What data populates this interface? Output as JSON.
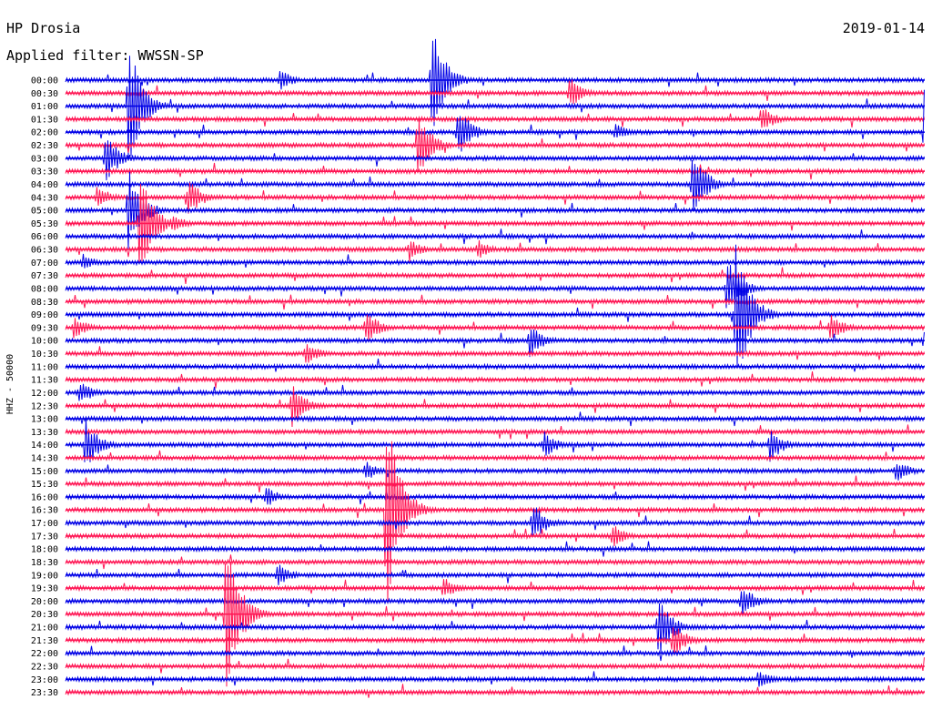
{
  "header": {
    "station": "HP Drosia",
    "date": "2019-01-14",
    "filter": "Applied filter: WWSSN-SP"
  },
  "chart_data": {
    "type": "line",
    "title": "HP Drosia",
    "subtitle": "Applied filter: WWSSN-SP",
    "date": "2019-01-14",
    "ylabel": "HHZ - 50000",
    "xlabel": "",
    "rows": [
      "00:00",
      "00:30",
      "01:00",
      "01:30",
      "02:00",
      "02:30",
      "03:00",
      "03:30",
      "04:00",
      "04:30",
      "05:00",
      "05:30",
      "06:00",
      "06:30",
      "07:00",
      "07:30",
      "08:00",
      "08:30",
      "09:00",
      "09:30",
      "10:00",
      "10:30",
      "11:00",
      "11:30",
      "12:00",
      "12:30",
      "13:00",
      "13:30",
      "14:00",
      "14:30",
      "15:00",
      "15:30",
      "16:00",
      "16:30",
      "17:00",
      "17:30",
      "18:00",
      "18:30",
      "19:00",
      "19:30",
      "20:00",
      "20:30",
      "21:00",
      "21:30",
      "22:00",
      "22:30",
      "23:00",
      "23:30"
    ],
    "row_minutes": 30,
    "series_colors": [
      "#0000e6",
      "#ff1654"
    ],
    "events": [
      {
        "row": 0,
        "minute": 12.8,
        "amp": 60
      },
      {
        "row": 0,
        "minute": 7.5,
        "amp": 12
      },
      {
        "row": 1,
        "minute": 17.6,
        "amp": 18
      },
      {
        "row": 2,
        "minute": 2.2,
        "amp": 75
      },
      {
        "row": 3,
        "minute": 24.3,
        "amp": 16
      },
      {
        "row": 4,
        "minute": 13.7,
        "amp": 30
      },
      {
        "row": 4,
        "minute": 19.2,
        "amp": 10
      },
      {
        "row": 4,
        "minute": 30,
        "amp": 60
      },
      {
        "row": 5,
        "minute": 12.3,
        "amp": 40
      },
      {
        "row": 6,
        "minute": 1.4,
        "amp": 28
      },
      {
        "row": 8,
        "minute": 21.9,
        "amp": 40
      },
      {
        "row": 9,
        "minute": 4.3,
        "amp": 22
      },
      {
        "row": 9,
        "minute": 1.1,
        "amp": 15
      },
      {
        "row": 10,
        "minute": 2.2,
        "amp": 48
      },
      {
        "row": 11,
        "minute": 2.6,
        "amp": 65
      },
      {
        "row": 11,
        "minute": 3.7,
        "amp": 12
      },
      {
        "row": 13,
        "minute": 12.0,
        "amp": 14
      },
      {
        "row": 13,
        "minute": 14.4,
        "amp": 12
      },
      {
        "row": 14,
        "minute": 0.6,
        "amp": 10
      },
      {
        "row": 16,
        "minute": 23.1,
        "amp": 35
      },
      {
        "row": 18,
        "minute": 23.4,
        "amp": 90
      },
      {
        "row": 19,
        "minute": 0.3,
        "amp": 14
      },
      {
        "row": 19,
        "minute": 10.5,
        "amp": 20
      },
      {
        "row": 19,
        "minute": 26.7,
        "amp": 18
      },
      {
        "row": 20,
        "minute": 16.2,
        "amp": 22
      },
      {
        "row": 20,
        "minute": 30,
        "amp": 20
      },
      {
        "row": 21,
        "minute": 8.4,
        "amp": 14
      },
      {
        "row": 24,
        "minute": 0.5,
        "amp": 14
      },
      {
        "row": 25,
        "minute": 7.9,
        "amp": 28
      },
      {
        "row": 28,
        "minute": 0.7,
        "amp": 30
      },
      {
        "row": 28,
        "minute": 16.7,
        "amp": 16
      },
      {
        "row": 28,
        "minute": 24.6,
        "amp": 20
      },
      {
        "row": 30,
        "minute": 10.5,
        "amp": 12
      },
      {
        "row": 30,
        "minute": 29.0,
        "amp": 14
      },
      {
        "row": 32,
        "minute": 7.0,
        "amp": 12
      },
      {
        "row": 33,
        "minute": 11.2,
        "amp": 120
      },
      {
        "row": 34,
        "minute": 16.3,
        "amp": 24
      },
      {
        "row": 35,
        "minute": 19.1,
        "amp": 14
      },
      {
        "row": 38,
        "minute": 7.4,
        "amp": 14
      },
      {
        "row": 39,
        "minute": 13.2,
        "amp": 14
      },
      {
        "row": 40,
        "minute": 23.6,
        "amp": 20
      },
      {
        "row": 41,
        "minute": 5.6,
        "amp": 95
      },
      {
        "row": 42,
        "minute": 20.7,
        "amp": 36
      },
      {
        "row": 43,
        "minute": 21.2,
        "amp": 22
      },
      {
        "row": 45,
        "minute": 30,
        "amp": 16
      },
      {
        "row": 46,
        "minute": 24.2,
        "amp": 12
      }
    ]
  }
}
